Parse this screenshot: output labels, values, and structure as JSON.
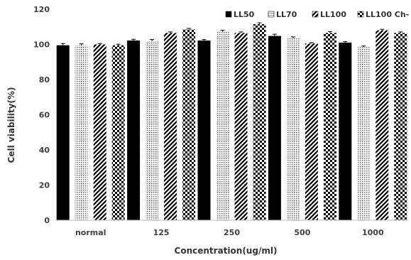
{
  "chart_data": {
    "type": "bar",
    "title": "",
    "xlabel": "Concentration(ug/ml)",
    "ylabel": "Cell viability(%)",
    "categories": [
      "normal",
      "125",
      "250",
      "500",
      "1000"
    ],
    "ylim": [
      0,
      120
    ],
    "yticks": [
      0,
      20,
      40,
      60,
      80,
      100,
      120
    ],
    "grid": false,
    "legend_position": "top-right",
    "series": [
      {
        "name": "LL50",
        "values": [
          99.5,
          102.2,
          102.2,
          104.8,
          101.0
        ],
        "errors": [
          1.0,
          0.7,
          0.6,
          1.0,
          0.6
        ],
        "pattern": "solid",
        "color": "#000000"
      },
      {
        "name": "LL70",
        "values": [
          99.5,
          101.8,
          107.2,
          103.5,
          98.5
        ],
        "errors": [
          0.8,
          1.0,
          0.8,
          0.8,
          0.6
        ],
        "pattern": "dots",
        "color": "#000000"
      },
      {
        "name": "LL100",
        "values": [
          100.0,
          106.5,
          106.5,
          100.5,
          108.0
        ],
        "errors": [
          0.5,
          0.6,
          0.6,
          0.5,
          0.6
        ],
        "pattern": "diagonal",
        "color": "#000000"
      },
      {
        "name": "LL100 Ch-",
        "values": [
          99.5,
          108.5,
          111.5,
          106.5,
          106.5
        ],
        "errors": [
          0.6,
          0.6,
          0.8,
          0.8,
          0.6
        ],
        "pattern": "checker",
        "color": "#000000"
      }
    ]
  }
}
